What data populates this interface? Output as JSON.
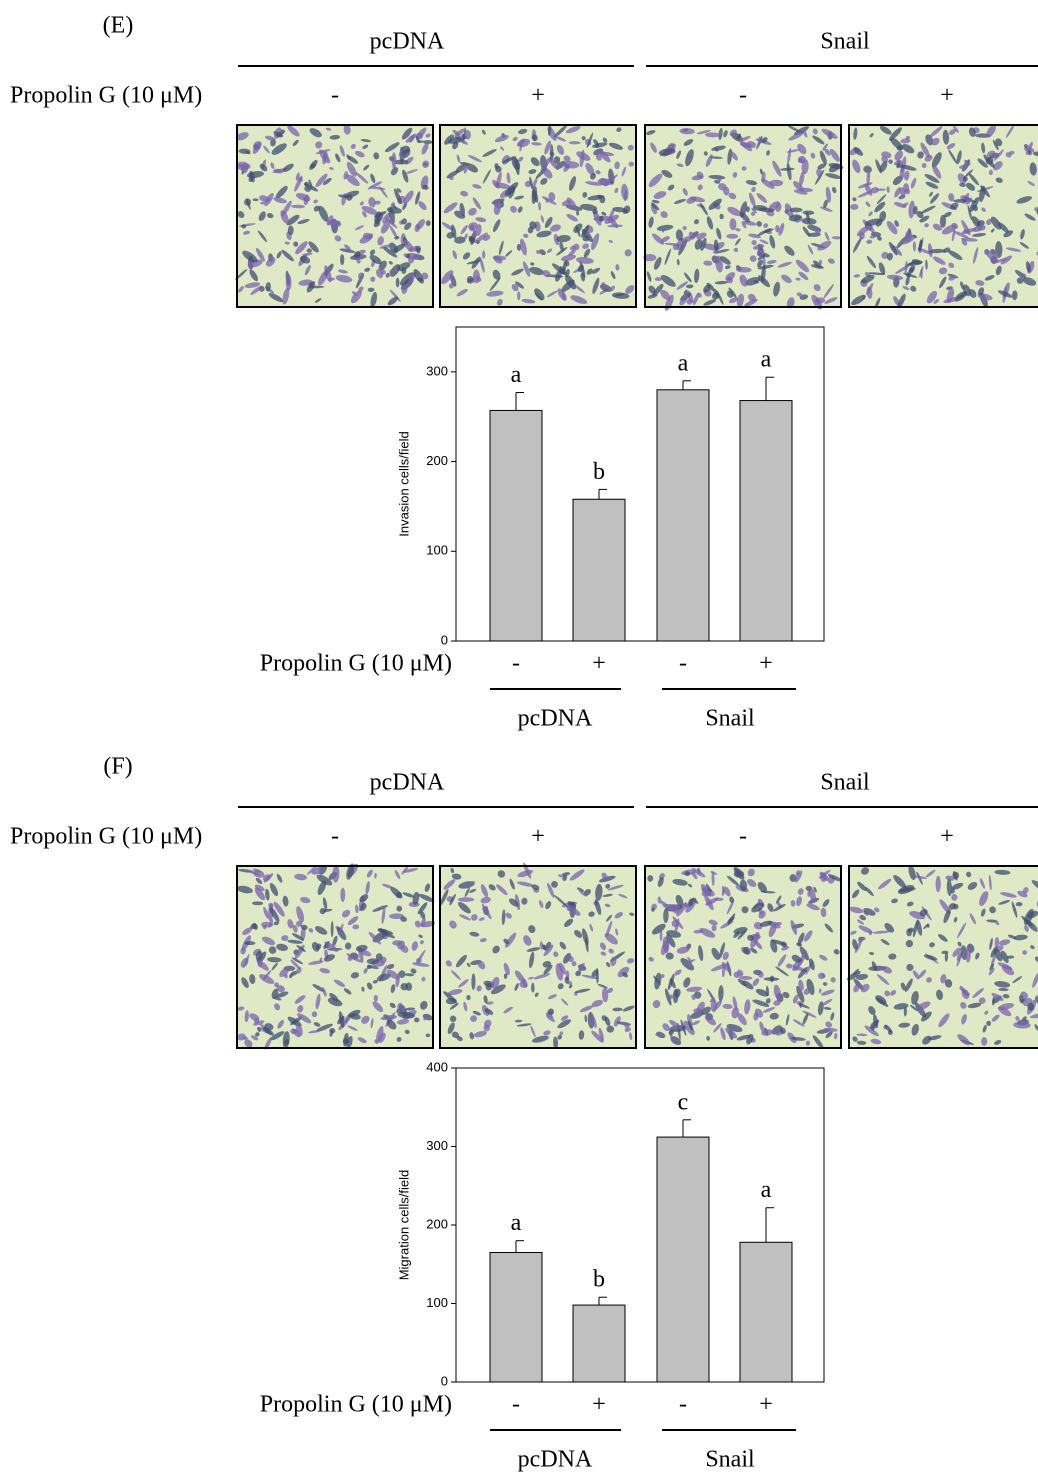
{
  "chart_data": [
    {
      "type": "bar",
      "panel_label": "(E)",
      "groups": [
        "pcDNA",
        "Snail"
      ],
      "treatment_label": "Propolin G (10 μM)",
      "categories": [
        "-",
        "+",
        "-",
        "+"
      ],
      "values": [
        257,
        158,
        280,
        268
      ],
      "errors": [
        20,
        11,
        10,
        26
      ],
      "annotations": [
        "a",
        "b",
        "a",
        "a"
      ],
      "ylabel": "Invasion cells/field",
      "ylim": [
        0,
        350
      ],
      "yticks": [
        0,
        100,
        200,
        300
      ],
      "color": "#c0c0c0"
    },
    {
      "type": "bar",
      "panel_label": "(F)",
      "groups": [
        "pcDNA",
        "Snail"
      ],
      "treatment_label": "Propolin G (10 μM)",
      "categories": [
        "-",
        "+",
        "-",
        "+"
      ],
      "values": [
        165,
        98,
        312,
        178
      ],
      "errors": [
        15,
        10,
        22,
        44
      ],
      "annotations": [
        "a",
        "b",
        "c",
        "a"
      ],
      "ylabel": "Migration cells/field",
      "ylim": [
        0,
        400
      ],
      "yticks": [
        0,
        100,
        200,
        300,
        400
      ],
      "color": "#c0c0c0"
    }
  ]
}
